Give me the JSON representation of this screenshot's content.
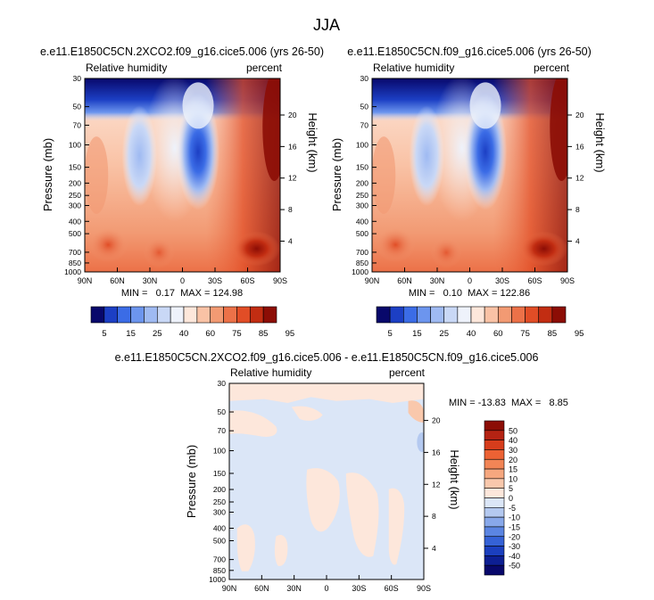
{
  "figure_title": "JJA",
  "chart_data": [
    {
      "type": "heatmap",
      "id": "top-left",
      "title": "e.e11.E1850C5CN.2XCO2.f09_g16.cice5.006 (yrs 26-50)",
      "left_label": "Relative humidity",
      "right_label": "percent",
      "ylabel": "Pressure (mb)",
      "ylabel_right": "Height (km)",
      "x_ticks": [
        "90N",
        "60N",
        "30N",
        "0",
        "30S",
        "60S",
        "90S"
      ],
      "y_ticks": [
        "30",
        "50",
        "70",
        "100",
        "150",
        "200",
        "250",
        "300",
        "400",
        "500",
        "700",
        "850",
        "1000"
      ],
      "y_ticks_right": [
        "20",
        "16",
        "12",
        "8",
        "4"
      ],
      "y_scale": "log-pressure",
      "ylim": [
        1000,
        30
      ],
      "stats_text": "MIN =   0.17  MAX = 124.98",
      "min": 0.17,
      "max": 124.98
    },
    {
      "type": "heatmap",
      "id": "top-right",
      "title": "e.e11.E1850C5CN.f09_g16.cice5.006 (yrs 26-50)",
      "left_label": "Relative humidity",
      "right_label": "percent",
      "ylabel": "Pressure (mb)",
      "ylabel_right": "Height (km)",
      "x_ticks": [
        "90N",
        "60N",
        "30N",
        "0",
        "30S",
        "60S",
        "90S"
      ],
      "y_ticks": [
        "30",
        "50",
        "70",
        "100",
        "150",
        "200",
        "250",
        "300",
        "400",
        "500",
        "700",
        "850",
        "1000"
      ],
      "y_ticks_right": [
        "20",
        "16",
        "12",
        "8",
        "4"
      ],
      "y_scale": "log-pressure",
      "ylim": [
        1000,
        30
      ],
      "stats_text": "MIN =   0.10  MAX = 122.86",
      "min": 0.1,
      "max": 122.86
    },
    {
      "type": "heatmap",
      "id": "difference",
      "title": "e.e11.E1850C5CN.2XCO2.f09_g16.cice5.006 - e.e11.E1850C5CN.f09_g16.cice5.006",
      "left_label": "Relative humidity",
      "right_label": "percent",
      "ylabel": "Pressure (mb)",
      "ylabel_right": "Height (km)",
      "x_ticks": [
        "90N",
        "60N",
        "30N",
        "0",
        "30S",
        "60S",
        "90S"
      ],
      "y_ticks": [
        "30",
        "50",
        "70",
        "100",
        "150",
        "200",
        "250",
        "300",
        "400",
        "500",
        "700",
        "850",
        "1000"
      ],
      "y_ticks_right": [
        "20",
        "16",
        "12",
        "8",
        "4"
      ],
      "y_scale": "log-pressure",
      "ylim": [
        1000,
        30
      ],
      "stats_text": "MIN = -13.83  MAX =   8.85",
      "min": -13.83,
      "max": 8.85
    }
  ],
  "colorbar_abs": {
    "labels": [
      "5",
      "15",
      "25",
      "40",
      "60",
      "75",
      "85",
      "95"
    ],
    "colors": [
      "#08086b",
      "#1c3fc4",
      "#3b6ce6",
      "#6c95ee",
      "#9fbaf2",
      "#c9d8f6",
      "#eef2fb",
      "#fde7db",
      "#f9c2a5",
      "#f29a73",
      "#ec7148",
      "#e14d26",
      "#c22d12",
      "#8c0d05"
    ]
  },
  "colorbar_diff": {
    "labels": [
      "50",
      "40",
      "30",
      "20",
      "15",
      "10",
      "5",
      "0",
      "-5",
      "-10",
      "-15",
      "-20",
      "-30",
      "-40",
      "-50"
    ],
    "colors": [
      "#8c0d05",
      "#b52313",
      "#d63d1c",
      "#ec6234",
      "#f28556",
      "#f6a77f",
      "#f9c8ac",
      "#fde7db",
      "#dbe6f7",
      "#b4c9f0",
      "#88a8ea",
      "#5b85e2",
      "#3562d6",
      "#1b3fbe",
      "#0d1f93",
      "#08086b"
    ]
  }
}
